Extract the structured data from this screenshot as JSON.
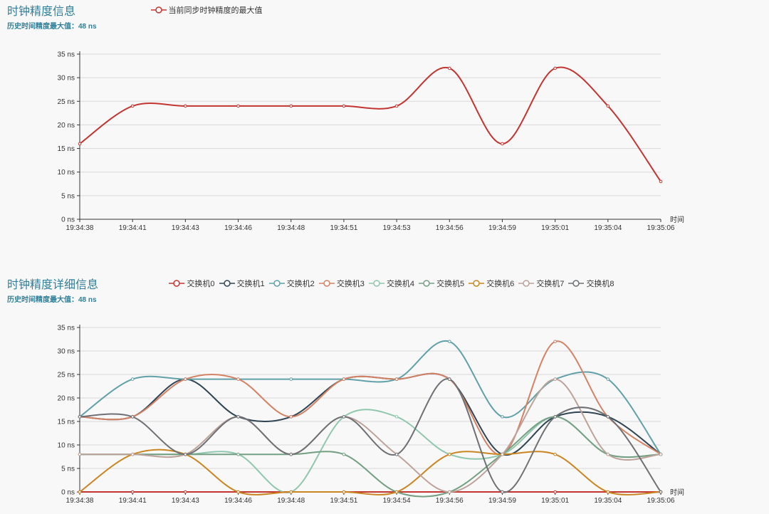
{
  "chart_data": [
    {
      "type": "line",
      "title": "时钟精度信息",
      "subtitle": "历史时间精度最大值：48 ns",
      "xlabel": "时间",
      "ylabel": "",
      "ylim": [
        0,
        35
      ],
      "yticks": [
        0,
        5,
        10,
        15,
        20,
        25,
        30,
        35
      ],
      "y_unit": "ns",
      "grid": true,
      "legend_position": "top",
      "smooth": true,
      "categories": [
        "19:34:38",
        "19:34:41",
        "19:34:43",
        "19:34:46",
        "19:34:48",
        "19:34:51",
        "19:34:53",
        "19:34:56",
        "19:34:59",
        "19:35:01",
        "19:35:04",
        "19:35:06"
      ],
      "series": [
        {
          "name": "当前同步时钟精度的最大值",
          "color": "#c23531",
          "values": [
            16,
            24,
            24,
            24,
            24,
            24,
            24,
            32,
            16,
            32,
            24,
            8
          ]
        }
      ]
    },
    {
      "type": "line",
      "title": "时钟精度详细信息",
      "subtitle": "历史时间精度最大值：48 ns",
      "xlabel": "时间",
      "ylabel": "",
      "ylim": [
        0,
        35
      ],
      "yticks": [
        0,
        5,
        10,
        15,
        20,
        25,
        30,
        35
      ],
      "y_unit": "ns",
      "grid": true,
      "legend_position": "top",
      "smooth": true,
      "categories": [
        "19:34:38",
        "19:34:41",
        "19:34:43",
        "19:34:46",
        "19:34:48",
        "19:34:51",
        "19:34:54",
        "19:34:56",
        "19:34:59",
        "19:35:01",
        "19:35:04",
        "19:35:06"
      ],
      "series": [
        {
          "name": "交换机0",
          "color": "#c23531",
          "values": [
            0,
            0,
            0,
            0,
            0,
            0,
            0,
            0,
            0,
            0,
            0,
            0
          ]
        },
        {
          "name": "交换机1",
          "color": "#2f4554",
          "values": [
            16,
            16,
            24,
            16,
            16,
            24,
            24,
            24,
            8,
            16,
            16,
            8
          ]
        },
        {
          "name": "交换机2",
          "color": "#61a0a8",
          "values": [
            16,
            24,
            24,
            24,
            24,
            24,
            24,
            32,
            16,
            24,
            24,
            8
          ]
        },
        {
          "name": "交换机3",
          "color": "#d48265",
          "values": [
            16,
            16,
            24,
            24,
            16,
            24,
            24,
            24,
            8,
            32,
            16,
            8
          ]
        },
        {
          "name": "交换机4",
          "color": "#91c7ae",
          "values": [
            8,
            8,
            8,
            8,
            0,
            16,
            16,
            8,
            8,
            16,
            8,
            8
          ]
        },
        {
          "name": "交换机5",
          "color": "#749f83",
          "values": [
            8,
            8,
            8,
            8,
            8,
            8,
            0,
            0,
            8,
            16,
            8,
            8
          ]
        },
        {
          "name": "交换机6",
          "color": "#ca8622",
          "values": [
            0,
            8,
            8,
            0,
            0,
            0,
            0,
            8,
            8,
            8,
            0,
            0
          ]
        },
        {
          "name": "交换机7",
          "color": "#bda29a",
          "values": [
            8,
            8,
            8,
            16,
            8,
            16,
            8,
            0,
            8,
            24,
            8,
            8
          ]
        },
        {
          "name": "交换机8",
          "color": "#6e7074",
          "values": [
            16,
            16,
            8,
            16,
            8,
            16,
            8,
            24,
            0,
            16,
            16,
            0
          ]
        }
      ]
    }
  ]
}
